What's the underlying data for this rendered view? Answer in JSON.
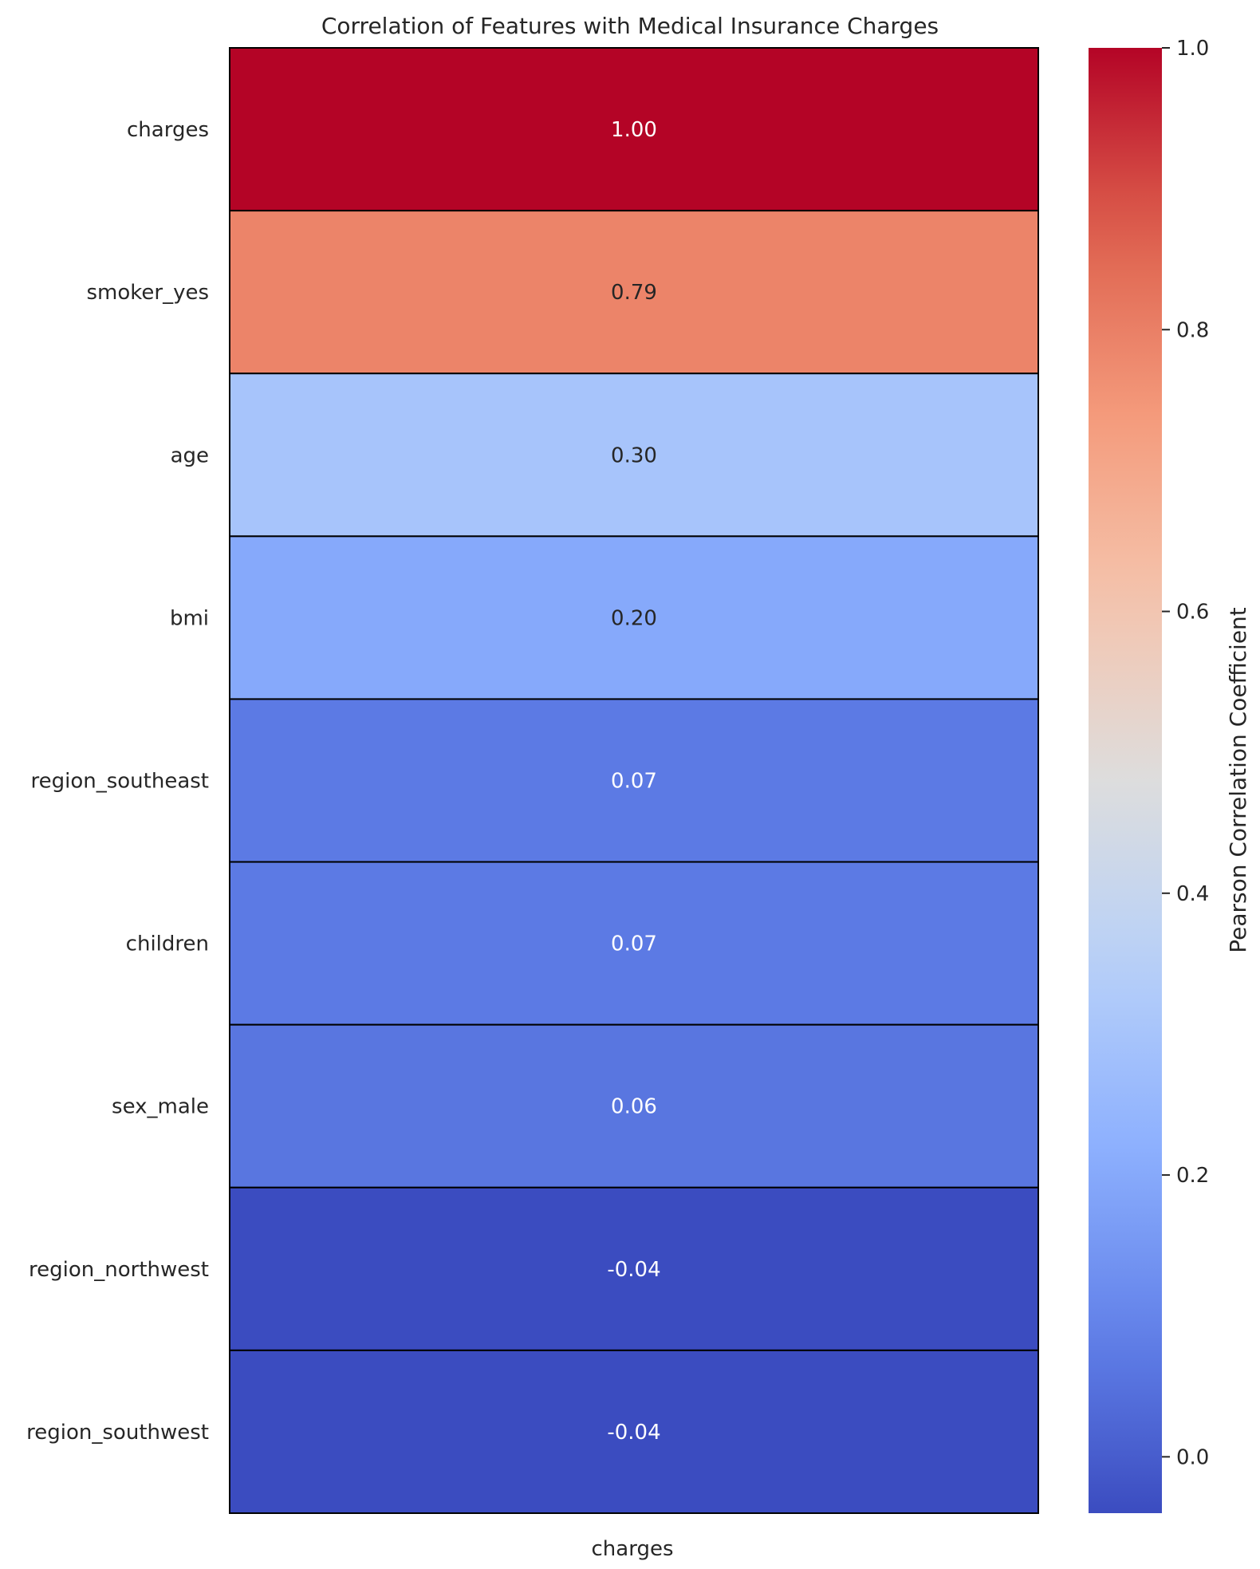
{
  "chart_data": {
    "type": "heatmap",
    "title": "Correlation of Features with Medical Insurance Charges",
    "columns": [
      "charges"
    ],
    "rows": [
      "charges",
      "smoker_yes",
      "age",
      "bmi",
      "region_southeast",
      "children",
      "sex_male",
      "region_northwest",
      "region_southwest"
    ],
    "values": [
      1.0,
      0.79,
      0.3,
      0.2,
      0.07,
      0.07,
      0.06,
      -0.04,
      -0.04
    ],
    "value_format": "2 decimals",
    "colormap": "coolwarm",
    "colorbar": {
      "label": "Pearson Correlation Coefficient",
      "range": [
        -0.04,
        1.0
      ],
      "ticks": [
        0.0,
        0.2,
        0.4,
        0.6,
        0.8,
        1.0
      ],
      "tick_labels": [
        "0.0",
        "0.2",
        "0.4",
        "0.6",
        "0.8",
        "1.0"
      ]
    },
    "grid": false
  }
}
